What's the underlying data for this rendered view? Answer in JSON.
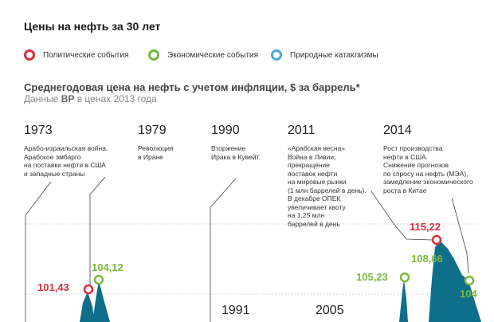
{
  "title": "Цены на нефть за 30 лет",
  "legend": [
    {
      "label": "Политические события",
      "color": "#d7303b"
    },
    {
      "label": "Экономические события",
      "color": "#7cb73d"
    },
    {
      "label": "Природные катаклизмы",
      "color": "#4aa8d8"
    }
  ],
  "subtitle": "Среднегодовая цена на нефть с учетом инфляции, $ за баррель*",
  "source_prefix": "Данные",
  "source_bold": "BP",
  "source_suffix": "в ценах 2013 года",
  "events": [
    {
      "year": "1973",
      "text": "Арабо-израильская война.\nАрабское эмбарго\nна поставки нефти в США\nи западные страны"
    },
    {
      "year": "1979",
      "text": "Революция\nв Иране"
    },
    {
      "year": "1990",
      "text": "Вторжение\nИрака в Кувейт"
    },
    {
      "year": "2011",
      "text": "«Арабская весна».\nВойна в Ливии,\nпрекращение\nпоставок нефти\nна мировые рынки\n(1 млн баррелей в день).\nВ декабре ОПЕК\nувеличивает квоту\nна 1,25 млн\nбаррелей в день"
    },
    {
      "year": "2014",
      "text": "Рост производства\nнефти в США.\nСнижение прогнозов\nпо спросу на нефть (МЭА),\nзамедление экономического\nроста в Китае"
    }
  ],
  "lower_years": [
    "1991",
    "2005"
  ],
  "chart_data": {
    "type": "area",
    "points": [
      {
        "label": "101,43",
        "value": 101.43,
        "category": "political",
        "color": "#d7303b"
      },
      {
        "label": "104,12",
        "value": 104.12,
        "category": "economic",
        "color": "#7cb73d"
      },
      {
        "label": "105,23",
        "value": 105.23,
        "category": "economic",
        "color": "#7cb73d"
      },
      {
        "label": "115,22",
        "value": 115.22,
        "category": "political",
        "color": "#d7303b"
      },
      {
        "label": "108,66",
        "value": 108.66,
        "category": "economic",
        "color": "#7cb73d"
      },
      {
        "label": "104",
        "value": 104,
        "category": "economic",
        "color": "#7cb73d"
      }
    ],
    "area_color": "#0f6f8a"
  }
}
